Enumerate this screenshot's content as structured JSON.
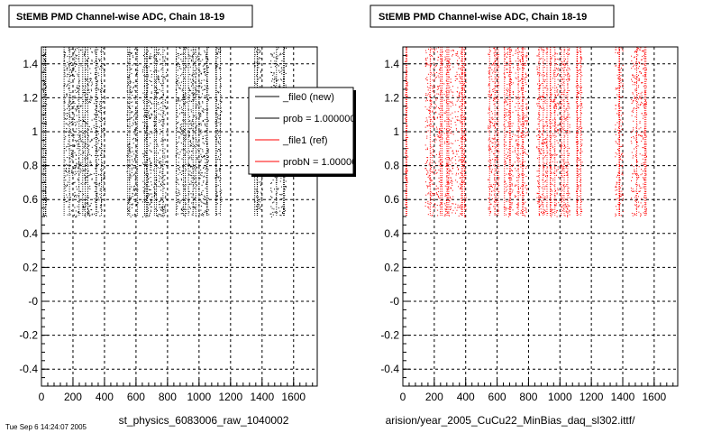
{
  "colors": {
    "new": "#000000",
    "ref": "#ff0000",
    "frame": "#000000",
    "grid": "#000000"
  },
  "legend": {
    "entries": [
      {
        "label": "_file0 (new)",
        "color": "#000000"
      },
      {
        "label": "prob = 1.000000",
        "color": "#000000"
      },
      {
        "label": "_file1 (ref)",
        "color": "#ff0000"
      },
      {
        "label": "probN = 1.000000",
        "color": "#ff0000"
      }
    ]
  },
  "footer_text": "Tue Sep 6 14:24:07 2005",
  "chart_data": [
    {
      "type": "scatter",
      "title": "StEMB PMD Channel-wise ADC, Chain 18-19",
      "xlabel": "st_physics_6083006_raw_1040002",
      "ylabel": "",
      "xlim": [
        0,
        1750
      ],
      "ylim": [
        -0.5,
        1.5
      ],
      "xticks": [
        0,
        200,
        400,
        600,
        800,
        1000,
        1200,
        1400,
        1600
      ],
      "yticks": [
        {
          "value": -0.4,
          "label": "-0.4"
        },
        {
          "value": -0.2,
          "label": "-0.2"
        },
        {
          "value": 0,
          "label": "-0"
        },
        {
          "value": 0.2,
          "label": "0.2"
        },
        {
          "value": 0.4,
          "label": "0.4"
        },
        {
          "value": 0.6,
          "label": "0.6"
        },
        {
          "value": 0.8,
          "label": "0.8"
        },
        {
          "value": 1,
          "label": "1"
        },
        {
          "value": 1.2,
          "label": "1.2"
        },
        {
          "value": 1.4,
          "label": "1.4"
        }
      ],
      "grid": true,
      "series_color": "#000000",
      "y_range": [
        0.5,
        1.5
      ],
      "channel_bands": [
        [
          10,
          30
        ],
        [
          140,
          250
        ],
        [
          260,
          320
        ],
        [
          330,
          400
        ],
        [
          540,
          610
        ],
        [
          640,
          700
        ],
        [
          710,
          790
        ],
        [
          850,
          920
        ],
        [
          930,
          990
        ],
        [
          1000,
          1060
        ],
        [
          1100,
          1140
        ],
        [
          1350,
          1400
        ],
        [
          1450,
          1550
        ]
      ],
      "legend_position": "top-right"
    },
    {
      "type": "scatter",
      "title": "StEMB PMD Channel-wise ADC, Chain 18-19",
      "xlabel": "arision/year_2005_CuCu22_MinBias_daq_sl302.ittf/",
      "ylabel": "",
      "xlim": [
        0,
        1750
      ],
      "ylim": [
        -0.5,
        1.5
      ],
      "xticks": [
        0,
        200,
        400,
        600,
        800,
        1000,
        1200,
        1400,
        1600
      ],
      "yticks": [
        {
          "value": -0.4,
          "label": "-0.4"
        },
        {
          "value": -0.2,
          "label": "-0.2"
        },
        {
          "value": 0,
          "label": "-0"
        },
        {
          "value": 0.2,
          "label": "0.2"
        },
        {
          "value": 0.4,
          "label": "0.4"
        },
        {
          "value": 0.6,
          "label": "0.6"
        },
        {
          "value": 0.8,
          "label": "0.8"
        },
        {
          "value": 1,
          "label": "1"
        },
        {
          "value": 1.2,
          "label": "1.2"
        },
        {
          "value": 1.4,
          "label": "1.4"
        }
      ],
      "grid": true,
      "series_color": "#ff0000",
      "y_range": [
        0.5,
        1.5
      ],
      "channel_bands": [
        [
          10,
          30
        ],
        [
          140,
          250
        ],
        [
          260,
          320
        ],
        [
          330,
          400
        ],
        [
          540,
          610
        ],
        [
          640,
          700
        ],
        [
          710,
          790
        ],
        [
          850,
          920
        ],
        [
          930,
          990
        ],
        [
          1000,
          1060
        ],
        [
          1100,
          1140
        ],
        [
          1350,
          1400
        ],
        [
          1450,
          1550
        ]
      ],
      "legend_position": "none"
    }
  ]
}
